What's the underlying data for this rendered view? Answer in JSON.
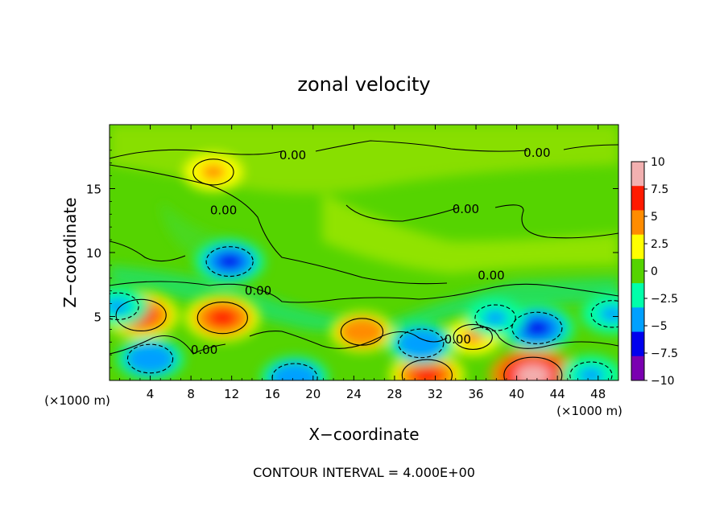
{
  "chart_data": {
    "type": "heatmap",
    "title": "zonal velocity",
    "xlabel": "X−coordinate",
    "ylabel": "Z−coordinate",
    "x_unit_note_left": "(×1000 m)",
    "x_unit_note_right": "(×1000 m)",
    "footer": "CONTOUR INTERVAL = 4.000E+00",
    "xlim": [
      0,
      50
    ],
    "ylim": [
      0,
      20
    ],
    "x_ticks": [
      4,
      8,
      12,
      16,
      20,
      24,
      28,
      32,
      36,
      40,
      44,
      48
    ],
    "y_ticks": [
      5,
      10,
      15
    ],
    "colorbar": {
      "min": -10,
      "max": 10,
      "ticks": [
        "10",
        "7.5",
        "5",
        "2.5",
        "0",
        "−2.5",
        "−5",
        "−7.5",
        "−10"
      ],
      "colors": [
        "#f2b0b0",
        "#ff1a00",
        "#ff8c00",
        "#ffff00",
        "#55d400",
        "#00ffaa",
        "#00a0ff",
        "#0000ee",
        "#7a00b0"
      ]
    },
    "contour_labels": [
      {
        "text": "0.00",
        "x": 18,
        "y": 17.6
      },
      {
        "text": "0.00",
        "x": 42,
        "y": 17.8
      },
      {
        "text": "0.00",
        "x": 35,
        "y": 13.4
      },
      {
        "text": "0.00",
        "x": 11.2,
        "y": 13.3
      },
      {
        "text": "0.00",
        "x": 14.6,
        "y": 7.0
      },
      {
        "text": "0.00",
        "x": 37.5,
        "y": 8.2
      },
      {
        "text": "0.00",
        "x": 9.3,
        "y": 2.4
      },
      {
        "text": "0.00",
        "x": 34.2,
        "y": 3.2
      }
    ],
    "features": [
      {
        "kind": "max",
        "x": 3.1,
        "y": 5.1,
        "value": 7.5
      },
      {
        "kind": "max",
        "x": 11.1,
        "y": 4.9,
        "value": 7.5
      },
      {
        "kind": "max",
        "x": 10.2,
        "y": 16.3,
        "value": 4.5
      },
      {
        "kind": "max",
        "x": 24.8,
        "y": 3.8,
        "value": 5
      },
      {
        "kind": "max",
        "x": 35.7,
        "y": 3.4,
        "value": 4
      },
      {
        "kind": "max",
        "x": 41.6,
        "y": 0.4,
        "value": 10
      },
      {
        "kind": "max",
        "x": 31.2,
        "y": 0.4,
        "value": 7.5
      },
      {
        "kind": "min",
        "x": 11.8,
        "y": 9.3,
        "value": -6.5
      },
      {
        "kind": "min",
        "x": 42.0,
        "y": 4.1,
        "value": -7.5
      },
      {
        "kind": "min",
        "x": 30.6,
        "y": 2.9,
        "value": -6
      },
      {
        "kind": "min",
        "x": 4.0,
        "y": 1.7,
        "value": -6
      },
      {
        "kind": "min",
        "x": 18.2,
        "y": 0.2,
        "value": -6
      },
      {
        "kind": "min",
        "x": 37.9,
        "y": 4.9,
        "value": -4.5
      },
      {
        "kind": "min",
        "x": 47.3,
        "y": 0.4,
        "value": -5
      },
      {
        "kind": "min",
        "x": 0.8,
        "y": 5.8,
        "value": -5
      },
      {
        "kind": "min",
        "x": 49.4,
        "y": 5.2,
        "value": -5
      }
    ],
    "grid": false,
    "legend": "colorbar-right"
  }
}
